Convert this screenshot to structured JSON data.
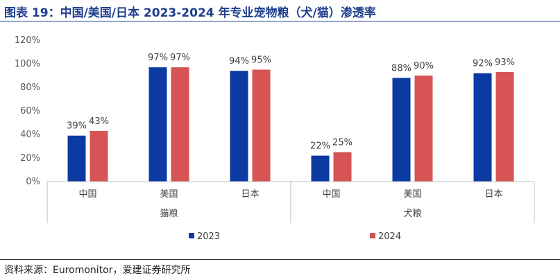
{
  "title": "图表 19：中国/美国/日本 2023-2024 年专业宠物粮（犬/猫）渗透率",
  "source": "资料来源：Euromonitor，爱建证券研究所",
  "chart_data": {
    "type": "bar",
    "groups": [
      {
        "name": "猫粮",
        "categories": [
          "中国",
          "美国",
          "日本"
        ]
      },
      {
        "name": "犬粮",
        "categories": [
          "中国",
          "美国",
          "日本"
        ]
      }
    ],
    "categories": [
      "中国",
      "美国",
      "日本",
      "中国",
      "美国",
      "日本"
    ],
    "series": [
      {
        "name": "2023",
        "color": "#0b3aa3",
        "values": [
          39,
          97,
          94,
          22,
          88,
          92
        ],
        "labels": [
          "39%",
          "97%",
          "94%",
          "22%",
          "88%",
          "92%"
        ]
      },
      {
        "name": "2024",
        "color": "#d65454",
        "values": [
          43,
          97,
          95,
          25,
          90,
          93
        ],
        "labels": [
          "43%",
          "97%",
          "95%",
          "25%",
          "90%",
          "93%"
        ]
      }
    ],
    "yticks": [
      "0%",
      "20%",
      "40%",
      "60%",
      "80%",
      "100%",
      "120%"
    ],
    "ylim": [
      0,
      120
    ],
    "grid": false,
    "legend_position": "bottom"
  }
}
